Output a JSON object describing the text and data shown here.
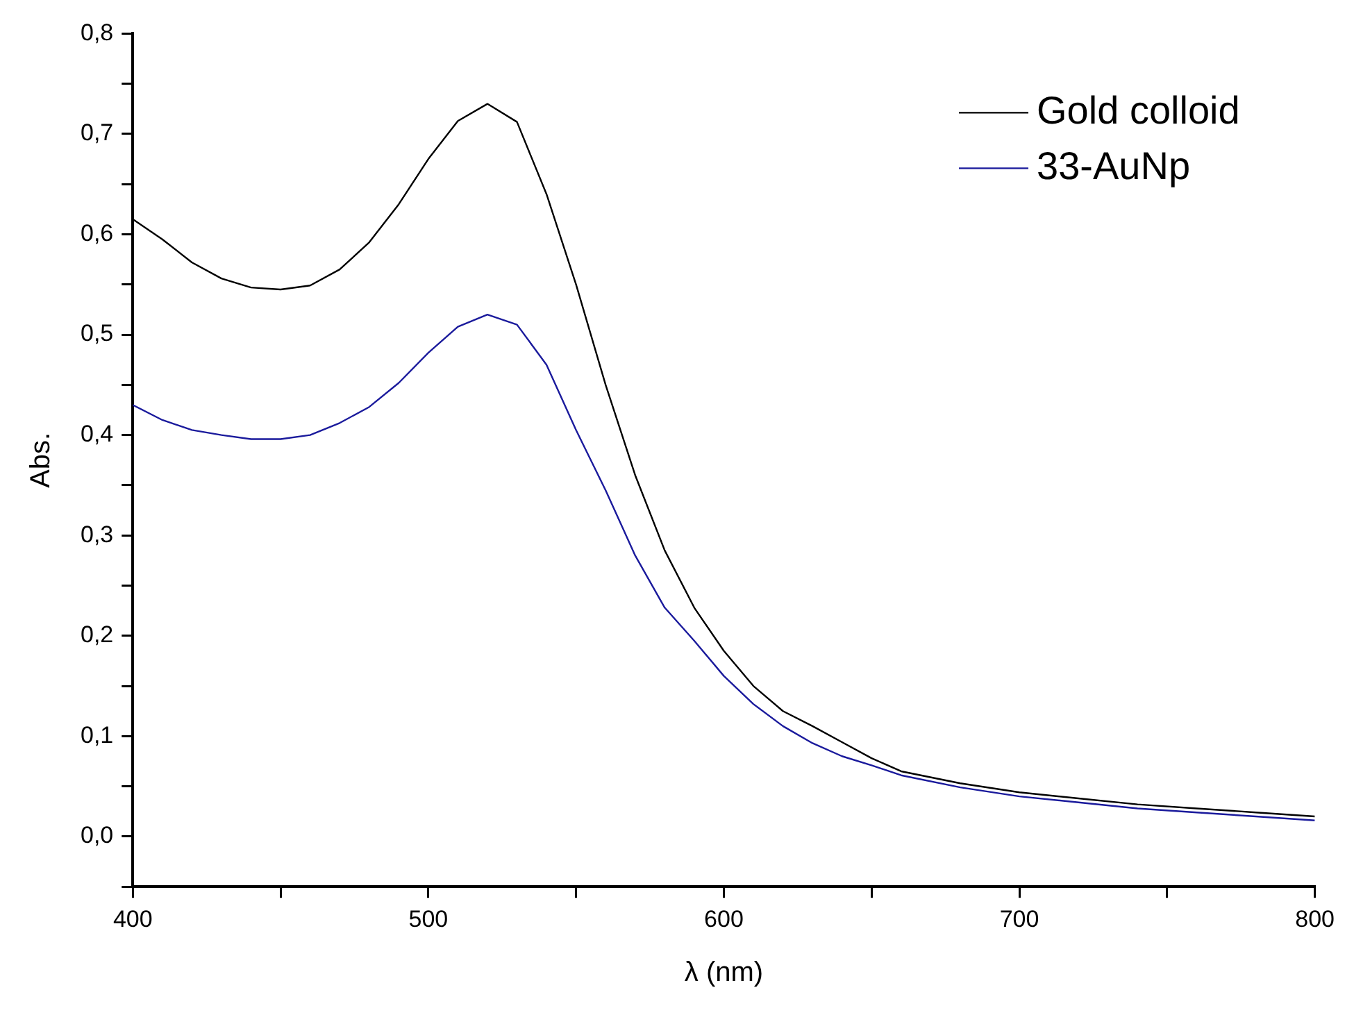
{
  "chart_data": {
    "type": "line",
    "xlabel": "λ (nm)",
    "ylabel": "Abs.",
    "xlim": [
      400,
      800
    ],
    "ylim": [
      -0.05,
      0.8
    ],
    "xticks": [
      400,
      {
        "value": 450,
        "label": null
      },
      500,
      {
        "value": 550,
        "label": null
      },
      600,
      {
        "value": 650,
        "label": null
      },
      700,
      {
        "value": 750,
        "label": null
      },
      800
    ],
    "yticks": [
      {
        "value": -0.05,
        "label": null
      },
      {
        "value": 0,
        "label": "0,0"
      },
      {
        "value": 0.05,
        "label": null
      },
      {
        "value": 0.1,
        "label": "0,1"
      },
      {
        "value": 0.15,
        "label": null
      },
      {
        "value": 0.2,
        "label": "0,2"
      },
      {
        "value": 0.25,
        "label": null
      },
      {
        "value": 0.3,
        "label": "0,3"
      },
      {
        "value": 0.35,
        "label": null
      },
      {
        "value": 0.4,
        "label": "0,4"
      },
      {
        "value": 0.45,
        "label": null
      },
      {
        "value": 0.5,
        "label": "0,5"
      },
      {
        "value": 0.55,
        "label": null
      },
      {
        "value": 0.6,
        "label": "0,6"
      },
      {
        "value": 0.65,
        "label": null
      },
      {
        "value": 0.7,
        "label": "0,7"
      },
      {
        "value": 0.75,
        "label": null
      },
      {
        "value": 0.8,
        "label": "0,8"
      }
    ],
    "grid": false,
    "legend": "top right",
    "marker": "none",
    "line_style": "solid",
    "x": [
      400,
      410,
      420,
      430,
      440,
      450,
      460,
      470,
      480,
      490,
      500,
      510,
      520,
      530,
      540,
      550,
      560,
      570,
      580,
      590,
      600,
      610,
      620,
      630,
      640,
      650,
      660,
      680,
      700,
      720,
      740,
      760,
      780,
      800
    ],
    "series": [
      {
        "name": "Gold colloid",
        "color": "#000000",
        "values": [
          0.615,
          0.595,
          0.572,
          0.556,
          0.547,
          0.545,
          0.549,
          0.565,
          0.592,
          0.63,
          0.675,
          0.713,
          0.73,
          0.712,
          0.64,
          0.55,
          0.45,
          0.36,
          0.285,
          0.228,
          0.185,
          0.15,
          0.125,
          0.11,
          0.094,
          0.078,
          0.065,
          0.053,
          0.044,
          0.038,
          0.032,
          0.028,
          0.024,
          0.02
        ]
      },
      {
        "name": "33-AuNp",
        "color": "#1a1a9c",
        "values": [
          0.43,
          0.415,
          0.405,
          0.4,
          0.396,
          0.396,
          0.4,
          0.412,
          0.428,
          0.452,
          0.482,
          0.508,
          0.52,
          0.51,
          0.47,
          0.405,
          0.345,
          0.28,
          0.228,
          0.195,
          0.16,
          0.132,
          0.11,
          0.093,
          0.08,
          0.071,
          0.061,
          0.049,
          0.04,
          0.034,
          0.028,
          0.024,
          0.02,
          0.016
        ]
      }
    ]
  }
}
